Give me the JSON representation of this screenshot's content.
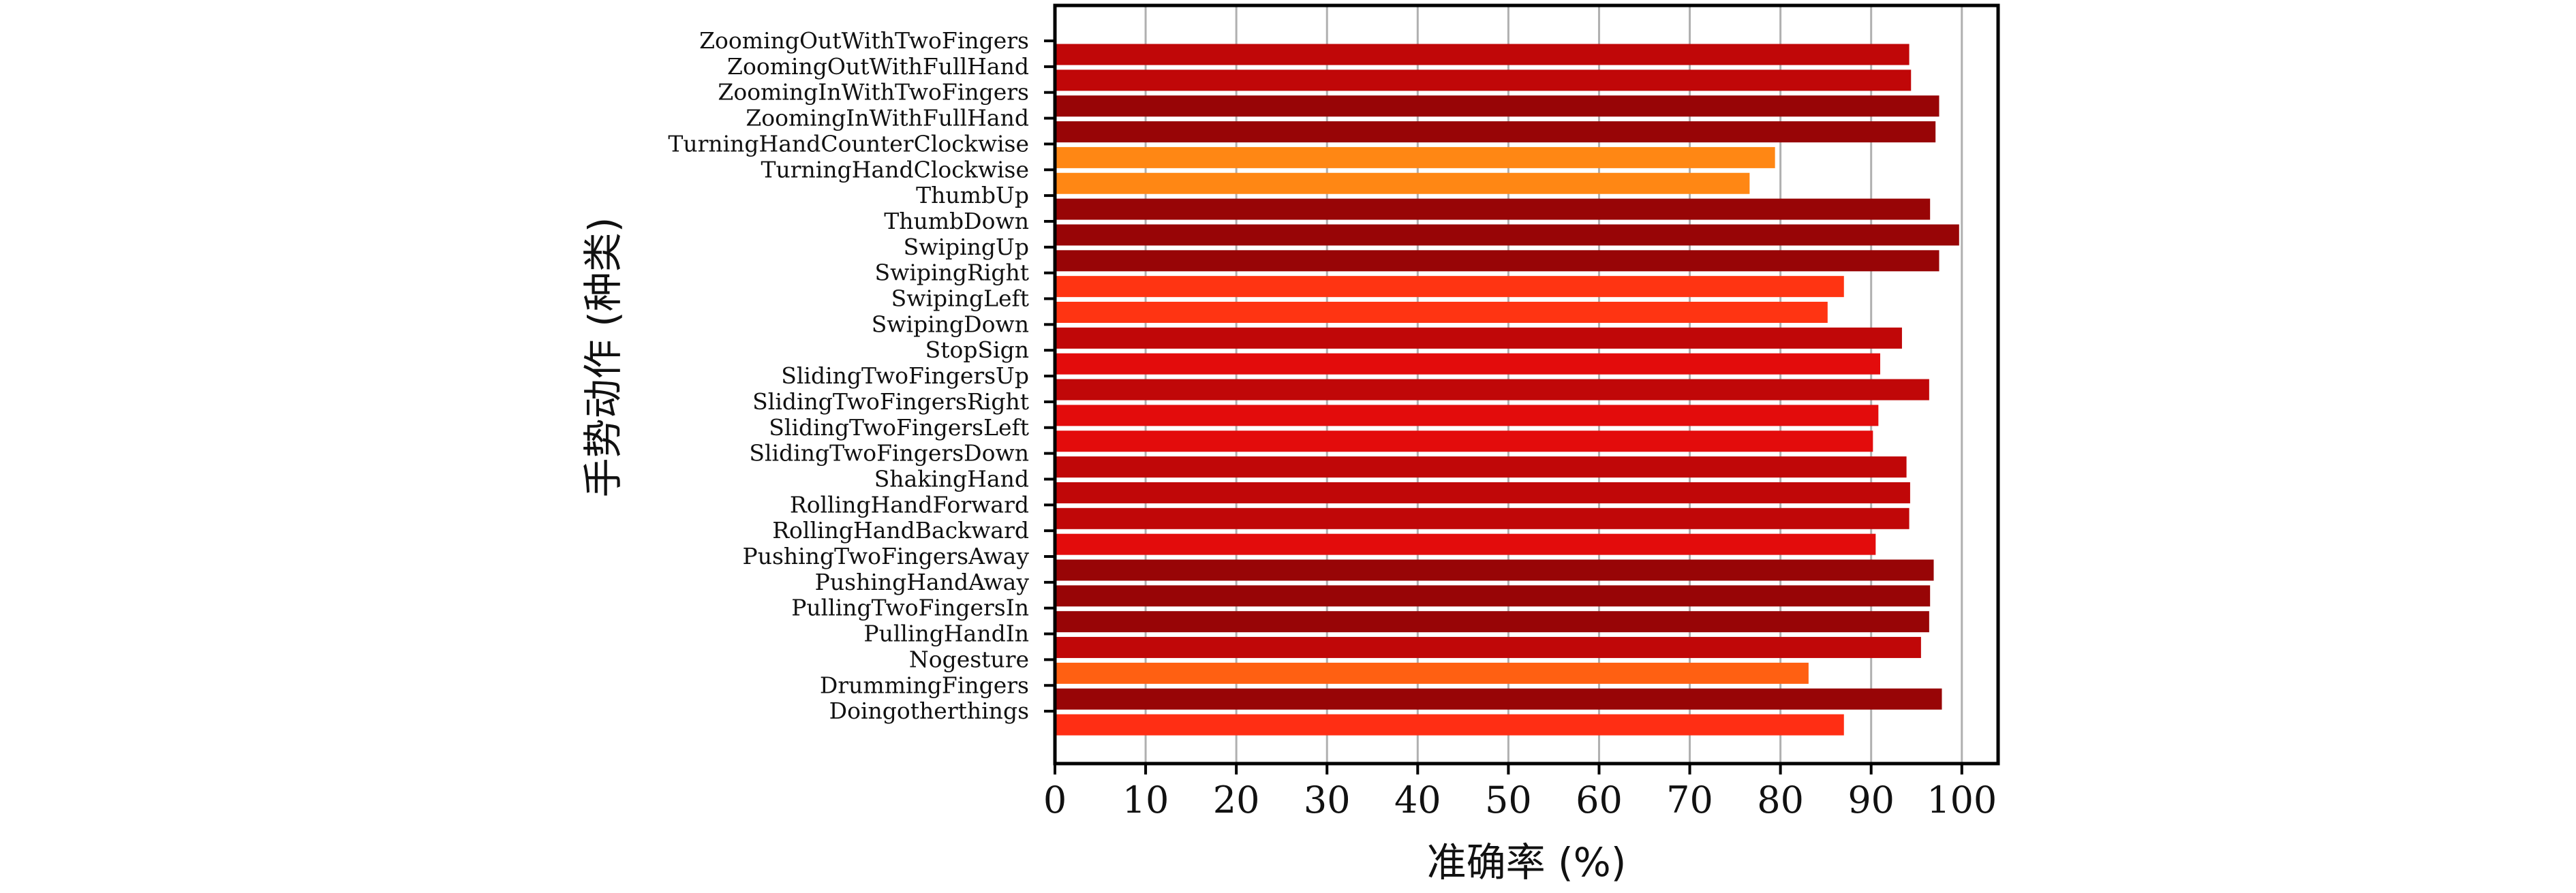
{
  "chart_data": {
    "type": "bar",
    "orientation": "horizontal",
    "xlabel": "准确率 (%)",
    "ylabel": "手势动作 (种类)",
    "xlim": [
      0,
      104
    ],
    "xticks": [
      0,
      10,
      20,
      30,
      40,
      50,
      60,
      70,
      80,
      90,
      100
    ],
    "grid": "vertical",
    "category_labels": [
      "ZoomingOutWithTwoFingers",
      "ZoomingOutWithFullHand",
      "ZoomingInWithTwoFingers",
      "ZoomingInWithFullHand",
      "TurningHandCounterClockwise",
      "TurningHandClockwise",
      "ThumbUp",
      "ThumbDown",
      "SwipingUp",
      "SwipingRight",
      "SwipingLeft",
      "SwipingDown",
      "StopSign",
      "SlidingTwoFingersUp",
      "SlidingTwoFingersRight",
      "SlidingTwoFingersLeft",
      "SlidingTwoFingersDown",
      "ShakingHand",
      "RollingHandForward",
      "RollingHandBackward",
      "PushingTwoFingersAway",
      "PushingHandAway",
      "PullingTwoFingersIn",
      "PullingHandIn",
      "Nogesture",
      "DrummingFingers",
      "Doingotherthings"
    ],
    "values": [
      94.2,
      94.4,
      97.5,
      97.1,
      79.4,
      76.6,
      96.5,
      99.7,
      97.5,
      87.0,
      85.2,
      93.4,
      91.0,
      96.4,
      90.8,
      90.2,
      93.9,
      94.3,
      94.2,
      90.5,
      96.9,
      96.5,
      96.4,
      95.5,
      83.1,
      97.8,
      87.0
    ],
    "bar_colors": [
      "#c00708",
      "#c00708",
      "#980506",
      "#980506",
      "#ff8714",
      "#ff8714",
      "#980506",
      "#980506",
      "#980506",
      "#ff3412",
      "#ff3412",
      "#c00708",
      "#e30c0c",
      "#c00708",
      "#e30c0c",
      "#e30c0c",
      "#c00708",
      "#c00708",
      "#c00708",
      "#e30c0c",
      "#980506",
      "#980506",
      "#980506",
      "#c00708",
      "#ff6012",
      "#980506",
      "#ff2e14"
    ]
  }
}
